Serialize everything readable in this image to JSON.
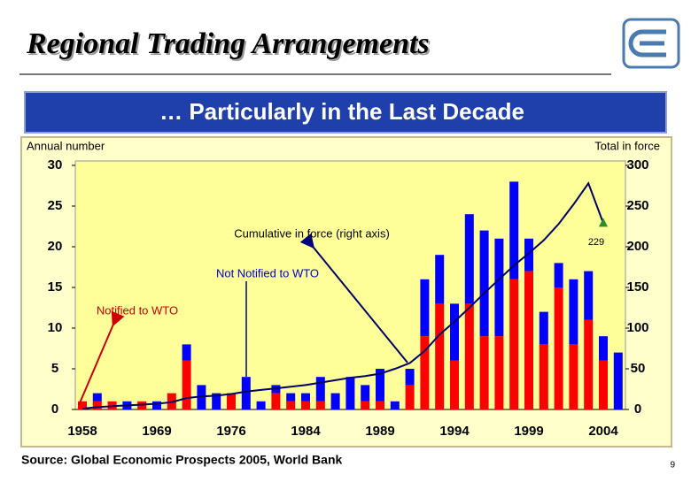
{
  "chart_data": {
    "type": "stacked-bar-line",
    "title": "Regional Trading Arrangements",
    "subtitle": "… Particularly in the Last Decade",
    "y_label": "Annual number",
    "y2_label": "Total in force",
    "source": "Source: Global Economic Prospects 2005, World Bank",
    "page_number": "9",
    "categories": [
      "1958",
      null,
      null,
      null,
      null,
      "1969",
      null,
      null,
      null,
      null,
      "1976",
      null,
      null,
      null,
      null,
      "1984",
      null,
      null,
      null,
      null,
      "1989",
      null,
      null,
      null,
      null,
      "1994",
      null,
      null,
      null,
      null,
      "1999",
      null,
      null,
      null,
      null,
      "2004",
      null
    ],
    "series": [
      {
        "name": "Notified to WTO",
        "color": "#ff0000",
        "values": [
          1,
          1,
          1,
          0,
          1,
          0,
          2,
          6,
          0,
          0,
          2,
          0,
          0,
          2,
          1,
          1,
          1,
          0,
          0,
          1,
          1,
          0,
          3,
          9,
          13,
          6,
          13,
          9,
          9,
          16,
          17,
          8,
          15,
          8,
          11,
          6,
          0
        ]
      },
      {
        "name": "Not Notified to WTO",
        "color": "#0000ff",
        "values": [
          0,
          1,
          0,
          1,
          0,
          1,
          0,
          2,
          3,
          2,
          0,
          4,
          1,
          1,
          1,
          1,
          3,
          2,
          4,
          2,
          4,
          1,
          2,
          7,
          6,
          7,
          11,
          13,
          12,
          12,
          4,
          4,
          3,
          8,
          6,
          3,
          7
        ]
      },
      {
        "name": "Cumulative in force (right axis)",
        "color": "#000066",
        "axis": "y2",
        "values": [
          1,
          3,
          4,
          5,
          6,
          7,
          9,
          14,
          16,
          17,
          19,
          22,
          24,
          26,
          28,
          30,
          33,
          36,
          39,
          41,
          44,
          50,
          57,
          72,
          92,
          108,
          125,
          143,
          160,
          177,
          192,
          208,
          228,
          252,
          278,
          229,
          null
        ],
        "value_labels": [
          null,
          null,
          null,
          null,
          null,
          null,
          null,
          null,
          null,
          null,
          null,
          null,
          null,
          null,
          null,
          null,
          null,
          null,
          null,
          null,
          null,
          null,
          null,
          null,
          null,
          null,
          null,
          null,
          null,
          null,
          null,
          null,
          null,
          null,
          null,
          "229",
          null
        ]
      }
    ],
    "ylim": [
      0,
      30
    ],
    "yticks": [
      0,
      5,
      10,
      15,
      20,
      25,
      30
    ],
    "y2lim": [
      0,
      300
    ],
    "y2ticks": [
      0,
      50,
      100,
      150,
      200,
      250,
      300
    ],
    "grid": false
  }
}
